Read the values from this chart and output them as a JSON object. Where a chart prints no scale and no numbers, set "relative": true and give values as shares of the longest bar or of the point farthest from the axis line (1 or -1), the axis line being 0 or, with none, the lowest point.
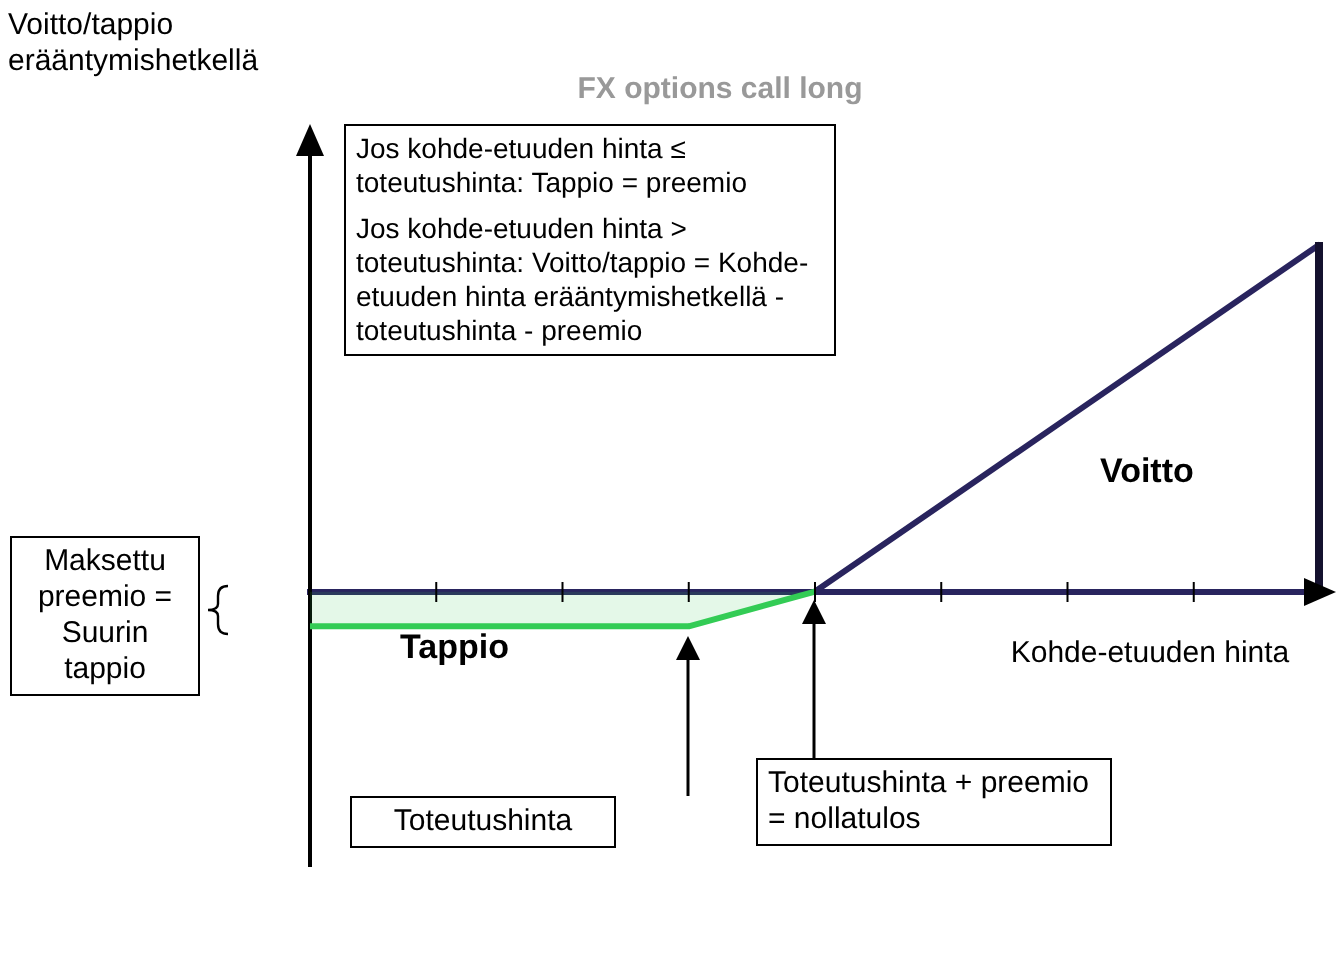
{
  "chart_data": {
    "type": "line",
    "title": "FX options call long",
    "xlabel": "Kohde-etuuden hinta",
    "relative": true,
    "marker": "none",
    "categories": [
      null,
      null,
      null,
      null,
      null,
      null,
      null,
      null,
      null
    ],
    "series": [
      {
        "type": "area",
        "color": "#33cc55",
        "values": [
          -0.1,
          -0.1,
          -0.1,
          -0.1,
          0,
          null,
          null,
          null,
          null
        ]
      },
      {
        "color": "#29245e",
        "values": [
          null,
          null,
          null,
          null,
          0,
          0.25,
          0.5,
          0.75,
          1
        ]
      }
    ],
    "annotations": [
      "Jos kohde-etuuden hinta ≤ toteutushinta: Tappio = preemio",
      "Jos kohde-etuuden hinta > toteutushinta: Voitto/tappio = Kohde-etuuden hinta erääntymishetkellä - toteutushinta - preemio",
      "Voitto",
      "Tappio",
      "Maksettu preemio = Suurin tappio",
      "Toteutushinta",
      "Toteutushinta + preemio = nollatulos",
      "Voitto/tappio erääntymishetkellä"
    ]
  }
}
